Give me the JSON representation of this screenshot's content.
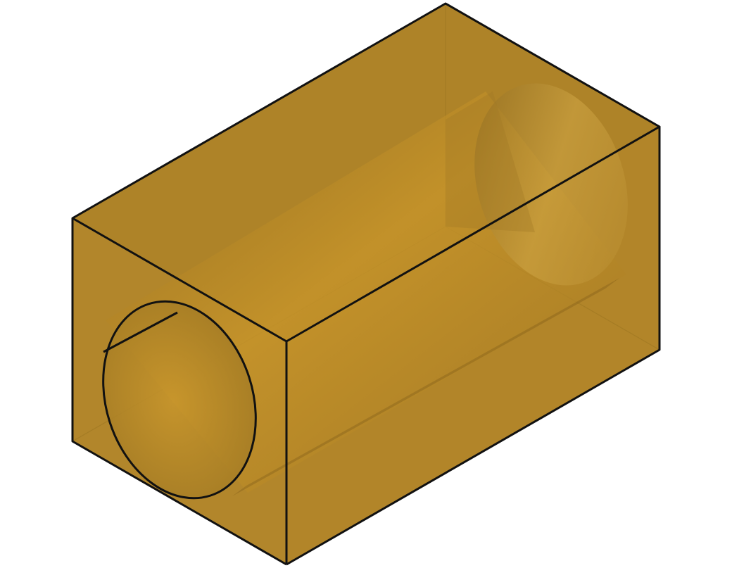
{
  "scene": {
    "object": "block-with-through-bore",
    "view": "isometric",
    "render_style": "translucent-shaded",
    "colors": {
      "background": "#ffffff",
      "body_top": "#b08428",
      "body_side": "#b38529",
      "body_front": "#b3872c",
      "bore_light": "#c9962a",
      "bore_dark": "#8f6a1e",
      "edge": "#111111"
    }
  }
}
